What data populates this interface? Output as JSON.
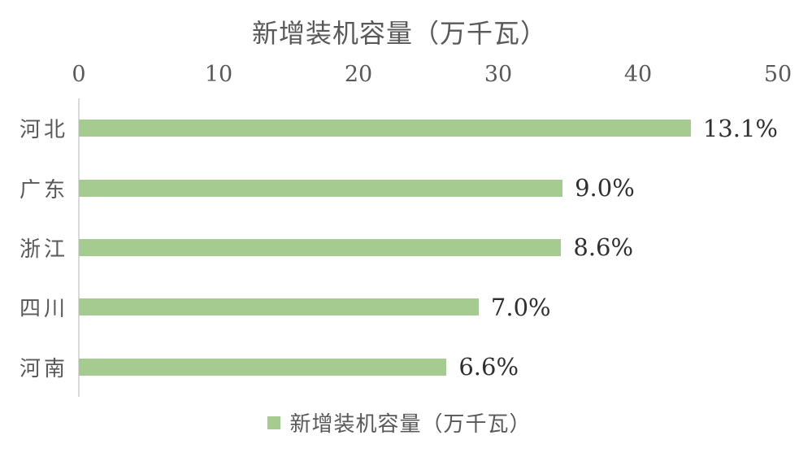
{
  "chart_data": {
    "type": "bar",
    "orientation": "horizontal",
    "title": "新增装机容量（万千瓦）",
    "categories": [
      "河北",
      "广东",
      "浙江",
      "四川",
      "河南"
    ],
    "values": [
      43.9,
      34.6,
      34.5,
      28.6,
      26.3
    ],
    "data_labels": [
      "13.1%",
      "9.0%",
      "8.6%",
      "7.0%",
      "6.6%"
    ],
    "x_ticks": [
      "0",
      "10",
      "20",
      "30",
      "40",
      "50"
    ],
    "xlim": [
      0,
      50
    ],
    "grid": false,
    "legend_position": "bottom",
    "legend_label": "新增装机容量（万千瓦）"
  },
  "colors": {
    "bar": "#a5cb90",
    "axis_line": "#d9d9d9",
    "title_text": "#595959",
    "tick_text": "#595959",
    "category_text": "#595959",
    "data_label_text": "#2f2f2f",
    "legend_text": "#595959",
    "background": "#ffffff"
  }
}
